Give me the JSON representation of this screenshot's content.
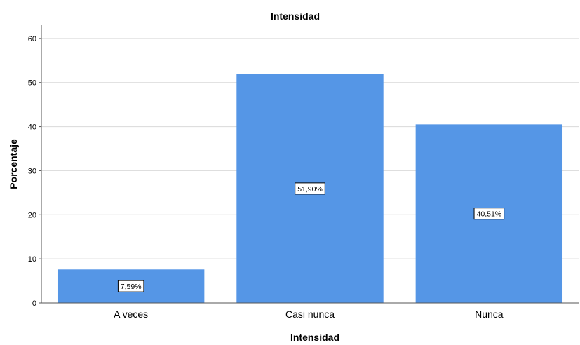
{
  "chart_data": {
    "type": "bar",
    "title": "Intensidad",
    "xlabel": "Intensidad",
    "ylabel": "Porcentaje",
    "categories": [
      "A veces",
      "Casi nunca",
      "Nunca"
    ],
    "values": [
      7.59,
      51.9,
      40.51
    ],
    "data_labels": [
      "7,59%",
      "51,90%",
      "40,51%"
    ],
    "ylim": [
      0,
      63
    ],
    "yticks": [
      0,
      10,
      20,
      30,
      40,
      50,
      60
    ],
    "grid": true,
    "bar_color": "#5596e6"
  }
}
